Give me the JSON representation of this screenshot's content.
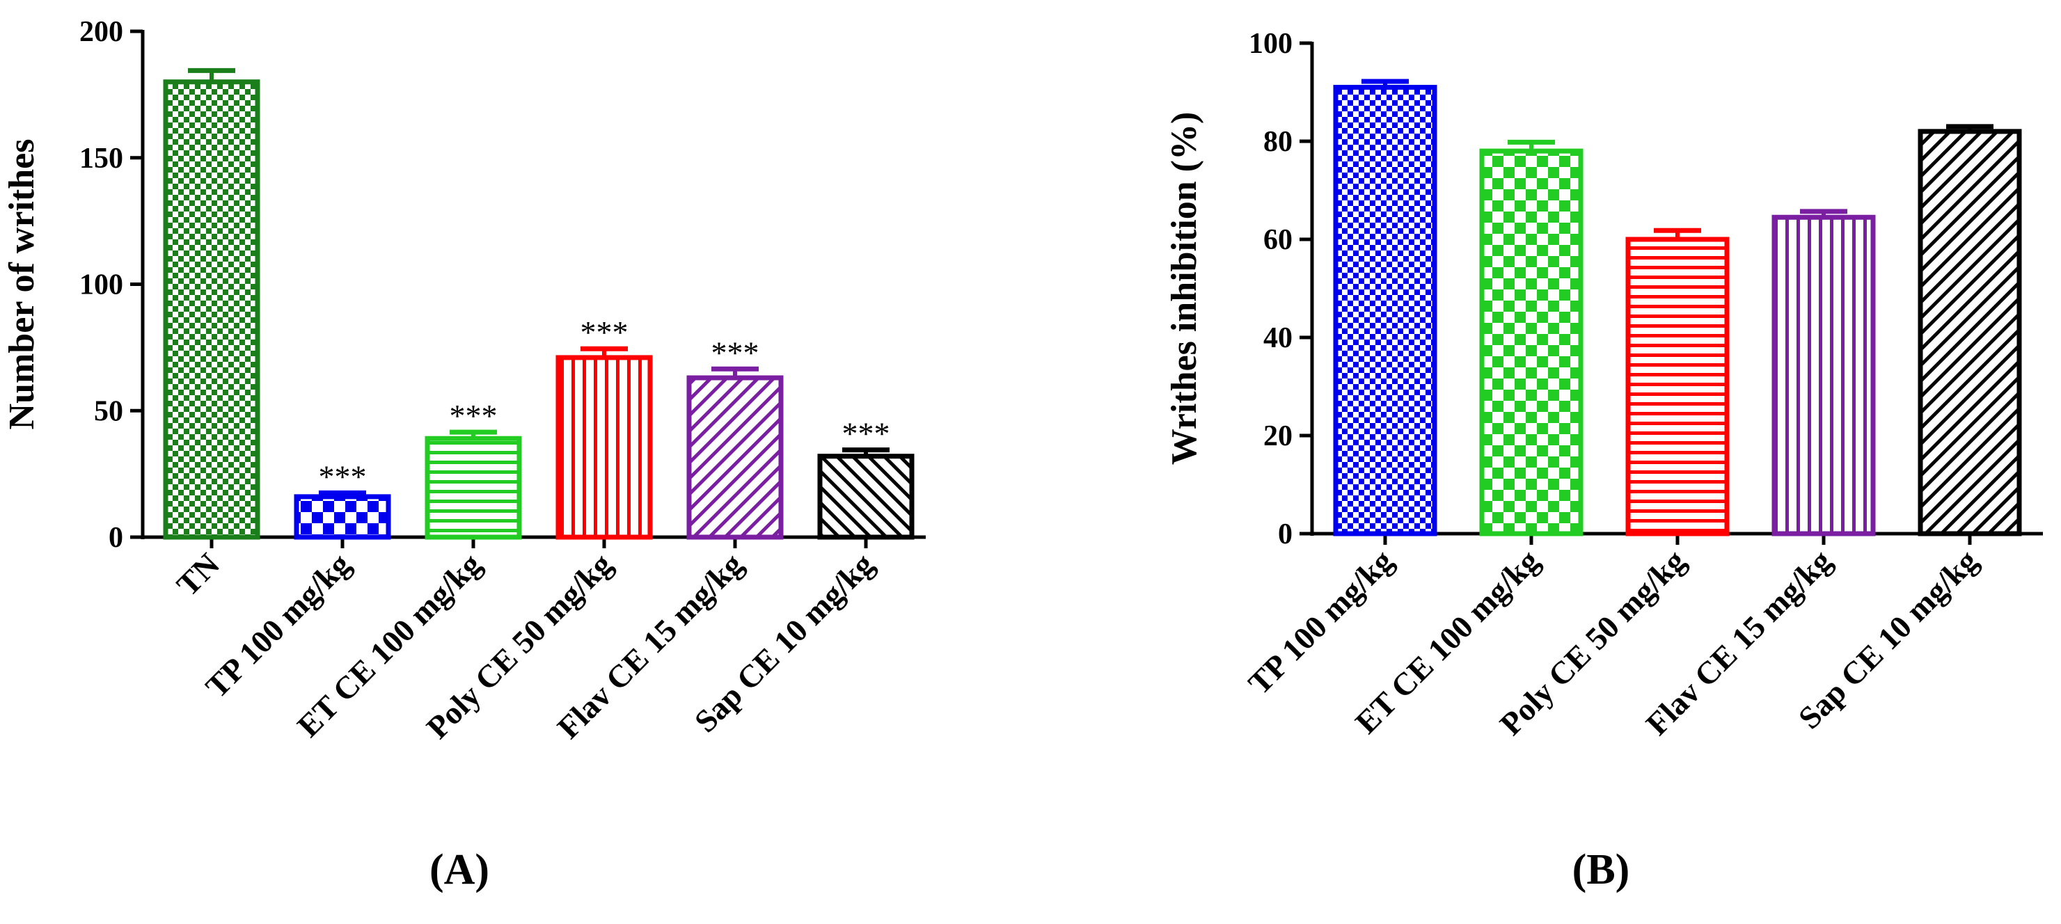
{
  "chart_data": [
    {
      "type": "bar",
      "panel_label": "(A)",
      "title": "",
      "xlabel": "",
      "ylabel": "Number of writhes",
      "ylim": [
        0,
        200
      ],
      "yticks": [
        0,
        50,
        100,
        150,
        200
      ],
      "categories": [
        "TN",
        "TP 100 mg/kg",
        "ET CE 100 mg/kg",
        "Poly CE 50 mg/kg",
        "Flav CE 15 mg/kg",
        "Sap CE 10 mg/kg"
      ],
      "values": [
        180,
        16,
        39,
        71,
        63,
        32
      ],
      "errors": [
        4.5,
        1.5,
        2.5,
        3.5,
        3.5,
        2.5
      ],
      "annotations": [
        "",
        "***",
        "***",
        "***",
        "***",
        "***"
      ],
      "colors": [
        "#1a7f1a",
        "#0000ee",
        "#22cc22",
        "#ff0000",
        "#7a1fa2",
        "#000000"
      ],
      "patterns": [
        "checker-fine",
        "checker-large",
        "hlines",
        "vlines",
        "diag-up",
        "diag-down"
      ]
    },
    {
      "type": "bar",
      "panel_label": "(B)",
      "title": "",
      "xlabel": "",
      "ylabel": "Writhes inhibition (%)",
      "ylim": [
        0,
        100
      ],
      "yticks": [
        0,
        20,
        40,
        60,
        80,
        100
      ],
      "categories": [
        "TP 100 mg/kg",
        "ET CE 100 mg/kg",
        "Poly CE 50 mg/kg",
        "Flav CE 15 mg/kg",
        "Sap CE 10 mg/kg"
      ],
      "values": [
        91,
        78,
        60,
        64.5,
        82
      ],
      "errors": [
        1.2,
        1.8,
        1.8,
        1.2,
        1.0
      ],
      "annotations": [
        "",
        "",
        "",
        "",
        ""
      ],
      "colors": [
        "#0000ee",
        "#22cc22",
        "#ff0000",
        "#7a1fa2",
        "#000000"
      ],
      "patterns": [
        "checker-fine",
        "checker-large",
        "hlines",
        "vlines",
        "diag-up"
      ]
    }
  ]
}
